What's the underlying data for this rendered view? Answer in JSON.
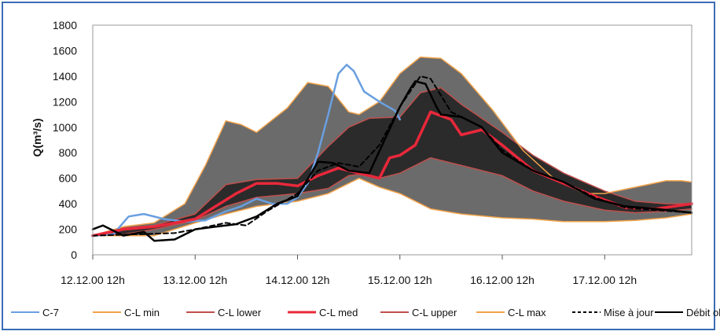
{
  "chart_data": {
    "type": "area",
    "title": "",
    "xlabel": "",
    "ylabel": "Q(m³/s)",
    "ylim": [
      0,
      1800
    ],
    "yticks": [
      0,
      200,
      400,
      600,
      800,
      1000,
      1200,
      1400,
      1600,
      1800
    ],
    "xlim": [
      0,
      5.85
    ],
    "xticks": [
      {
        "x": 0,
        "label": "12.12.00 12h"
      },
      {
        "x": 1,
        "label": "13.12.00 12h"
      },
      {
        "x": 2,
        "label": "14.12.00 12h"
      },
      {
        "x": 3,
        "label": "15.12.00 12h"
      },
      {
        "x": 4,
        "label": "16.12.00 12h"
      },
      {
        "x": 5,
        "label": "17.12.00 12h"
      }
    ],
    "grid": false,
    "legend_position": "bottom",
    "colors": {
      "outer_band": "#6b6b6b",
      "inner_band": "#2b2b2b",
      "c7": "#6a9fe0",
      "cl_min": "#f2a24a",
      "cl_lower": "#c0504d",
      "cl_med": "#e8283a",
      "cl_upper": "#c0504d",
      "cl_max": "#f2a24a",
      "mise_a_jour": "#000000",
      "debit_observe": "#000000"
    },
    "series": [
      {
        "name": "C-7",
        "x": [
          0,
          0.2,
          0.35,
          0.5,
          0.7,
          0.9,
          1.1,
          1.3,
          1.45,
          1.6,
          1.75,
          1.9,
          2.0,
          2.1,
          2.2,
          2.3,
          2.4,
          2.48,
          2.55,
          2.65,
          2.8,
          2.95,
          3.0
        ],
        "values": [
          150,
          160,
          300,
          320,
          280,
          260,
          270,
          340,
          380,
          440,
          400,
          400,
          450,
          560,
          800,
          1100,
          1420,
          1490,
          1440,
          1280,
          1200,
          1130,
          1060
        ]
      },
      {
        "name": "C-L min",
        "x": [
          0,
          0.3,
          0.6,
          1.0,
          1.3,
          1.6,
          2.0,
          2.3,
          2.5,
          2.6,
          2.8,
          3.0,
          3.3,
          3.6,
          4.0,
          4.3,
          4.6,
          5.0,
          5.3,
          5.6,
          5.85
        ],
        "values": [
          150,
          150,
          150,
          250,
          320,
          380,
          420,
          480,
          560,
          600,
          530,
          480,
          360,
          320,
          290,
          280,
          260,
          260,
          270,
          290,
          320
        ]
      },
      {
        "name": "C-L lower",
        "x": [
          0,
          0.3,
          0.6,
          1.0,
          1.3,
          1.6,
          2.0,
          2.3,
          2.5,
          2.6,
          2.8,
          3.0,
          3.3,
          3.6,
          4.0,
          4.3,
          4.6,
          5.0,
          5.3,
          5.6,
          5.85
        ],
        "values": [
          150,
          160,
          200,
          270,
          380,
          450,
          480,
          520,
          620,
          630,
          600,
          640,
          760,
          700,
          620,
          500,
          420,
          350,
          330,
          340,
          360
        ]
      },
      {
        "name": "C-L med",
        "x": [
          0,
          0.3,
          0.6,
          1.0,
          1.2,
          1.4,
          1.6,
          1.8,
          2.0,
          2.2,
          2.4,
          2.6,
          2.8,
          2.9,
          3.0,
          3.15,
          3.3,
          3.5,
          3.6,
          3.8,
          4.0,
          4.3,
          4.6,
          4.9,
          5.2,
          5.5,
          5.85
        ],
        "values": [
          150,
          200,
          220,
          280,
          380,
          480,
          560,
          560,
          540,
          620,
          680,
          640,
          600,
          760,
          780,
          860,
          1120,
          1060,
          940,
          980,
          860,
          660,
          560,
          460,
          370,
          360,
          400
        ]
      },
      {
        "name": "C-L upper",
        "x": [
          0,
          0.3,
          0.6,
          1.0,
          1.3,
          1.6,
          2.0,
          2.3,
          2.5,
          2.7,
          3.0,
          3.2,
          3.4,
          3.6,
          4.0,
          4.3,
          4.6,
          5.0,
          5.3,
          5.6,
          5.85
        ],
        "values": [
          150,
          210,
          230,
          320,
          550,
          590,
          600,
          850,
          1000,
          1070,
          1080,
          1270,
          1310,
          1180,
          960,
          780,
          640,
          500,
          420,
          400,
          400
        ]
      },
      {
        "name": "C-L max",
        "x": [
          0,
          0.3,
          0.6,
          0.9,
          1.1,
          1.3,
          1.45,
          1.6,
          1.9,
          2.1,
          2.3,
          2.5,
          2.6,
          2.8,
          3.0,
          3.2,
          3.4,
          3.6,
          3.9,
          4.2,
          4.5,
          4.8,
          5.0,
          5.3,
          5.6,
          5.75,
          5.85
        ],
        "values": [
          150,
          220,
          250,
          400,
          700,
          1050,
          1020,
          960,
          1150,
          1350,
          1320,
          1120,
          1100,
          1200,
          1420,
          1550,
          1540,
          1420,
          1140,
          820,
          600,
          480,
          480,
          530,
          580,
          580,
          570
        ]
      },
      {
        "name": "Mise à jour",
        "x": [
          0,
          0.4,
          0.8,
          1.0,
          1.3,
          1.5,
          1.7,
          2.0,
          2.2,
          2.4,
          2.6,
          2.8,
          3.0,
          3.2,
          3.3,
          3.5,
          3.8,
          4.0,
          4.3,
          4.6,
          4.9,
          5.2,
          5.5,
          5.85
        ],
        "values": [
          150,
          160,
          170,
          200,
          250,
          230,
          340,
          480,
          660,
          720,
          690,
          860,
          1160,
          1400,
          1380,
          1120,
          1000,
          820,
          660,
          570,
          450,
          370,
          350,
          330
        ]
      },
      {
        "name": "Débit observé",
        "x": [
          0,
          0.1,
          0.3,
          0.5,
          0.6,
          0.8,
          1.0,
          1.2,
          1.4,
          1.6,
          1.8,
          2.0,
          2.2,
          2.35,
          2.5,
          2.7,
          2.85,
          3.0,
          3.1,
          3.15,
          3.25,
          3.35,
          3.4,
          3.6,
          3.8,
          4.0,
          4.3,
          4.6,
          4.9,
          5.2,
          5.5,
          5.85
        ],
        "values": [
          200,
          230,
          150,
          180,
          110,
          120,
          200,
          220,
          240,
          300,
          400,
          460,
          730,
          720,
          660,
          640,
          900,
          1160,
          1300,
          1360,
          1340,
          1170,
          1100,
          1080,
          1000,
          800,
          660,
          570,
          440,
          380,
          360,
          330
        ]
      }
    ]
  }
}
